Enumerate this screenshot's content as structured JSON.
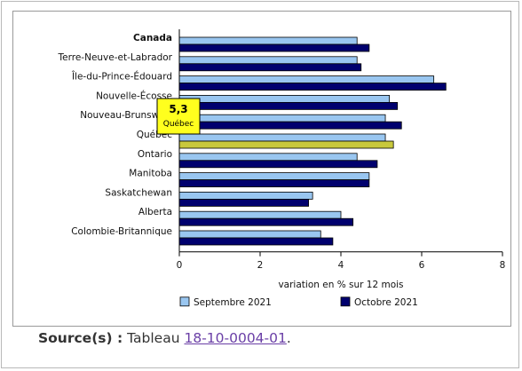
{
  "chart_data": {
    "type": "bar",
    "orientation": "horizontal",
    "categories": [
      "Canada",
      "Terre-Neuve-et-Labrador",
      "Île-du-Prince-Édouard",
      "Nouvelle-Écosse",
      "Nouveau-Brunswick",
      "Québec",
      "Ontario",
      "Manitoba",
      "Saskatchewan",
      "Alberta",
      "Colombie-Britannique"
    ],
    "series": [
      {
        "name": "Septembre 2021",
        "color": "#99c6f0",
        "values": [
          4.4,
          4.4,
          6.3,
          5.2,
          5.1,
          5.1,
          4.4,
          4.7,
          3.3,
          4.0,
          3.5
        ]
      },
      {
        "name": "Octobre 2021",
        "color": "#00006e",
        "values": [
          4.7,
          4.5,
          6.6,
          5.4,
          5.5,
          5.3,
          4.9,
          4.7,
          3.2,
          4.3,
          3.8
        ]
      }
    ],
    "highlight": {
      "category": "Québec",
      "series": "Octobre 2021",
      "color": "#c8c83c",
      "value_text": "5,3"
    },
    "xlabel": "variation en % sur 12 mois",
    "ylabel": "",
    "xlim": [
      0,
      8
    ],
    "xticks": [
      0,
      2,
      4,
      6,
      8
    ],
    "xtick_labels": [
      "0",
      "2",
      "4",
      "6",
      "8"
    ],
    "grid": false,
    "legend_position": "bottom",
    "bold_categories": [
      "Canada"
    ]
  },
  "tooltip": {
    "value": "5,3",
    "label": "Québec"
  },
  "source": {
    "label": "Source(s) :",
    "prefix": "Tableau",
    "link_text": "18-10-0004-01",
    "suffix": "."
  }
}
